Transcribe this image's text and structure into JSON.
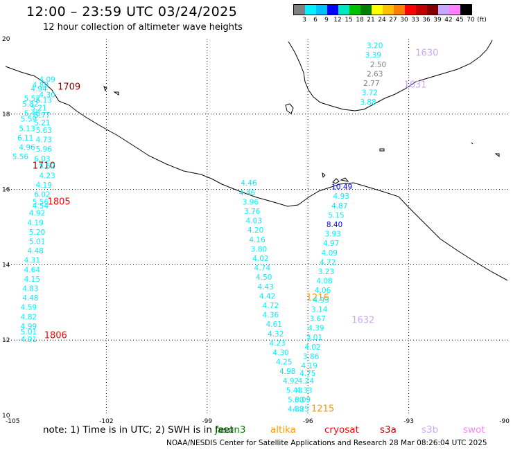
{
  "header": {
    "title": "12:00 – 23:59 UTC 03/24/2025",
    "subtitle": "12 hour collection of altimeter wave heights"
  },
  "legend": {
    "colors": [
      "#7f7f7f",
      "#00f0ff",
      "#00bfff",
      "#0000ff",
      "#00e8c0",
      "#00c000",
      "#008000",
      "#ffff00",
      "#ffc000",
      "#ff8000",
      "#ff0000",
      "#c00000",
      "#800000",
      "#c8a8ff",
      "#ff80ff",
      "#000000"
    ],
    "labels": [
      "3",
      "6",
      "9",
      "12",
      "15",
      "18",
      "21",
      "24",
      "27",
      "30",
      "33",
      "36",
      "39",
      "42",
      "45",
      "70",
      "(ft)"
    ]
  },
  "axes": {
    "lon_labels": [
      "-105",
      "-102",
      "-99",
      "-96",
      "-93",
      "-90"
    ],
    "lat_labels": [
      "20",
      "18",
      "16",
      "14",
      "12",
      "10"
    ]
  },
  "chart_data": {
    "type": "scatter",
    "xlim": [
      -105,
      -90
    ],
    "ylim": [
      10,
      20
    ],
    "track_labels": [
      {
        "text": "1709",
        "lon": -103.45,
        "lat": 18.65,
        "color": "#800000"
      },
      {
        "text": "1710",
        "lon": -104.2,
        "lat": 16.55,
        "color": "#800000"
      },
      {
        "text": "1805",
        "lon": -103.75,
        "lat": 15.6,
        "color": "#ff0000"
      },
      {
        "text": "1806",
        "lon": -103.85,
        "lat": 12.05,
        "color": "#ff0000"
      },
      {
        "text": "1630",
        "lon": -92.8,
        "lat": 19.55,
        "color": "#c8a8ff"
      },
      {
        "text": "1631",
        "lon": -93.15,
        "lat": 18.7,
        "color": "#c8a8ff"
      },
      {
        "text": "1632",
        "lon": -94.7,
        "lat": 12.45,
        "color": "#c8a8ff"
      },
      {
        "text": "1216",
        "lon": -96.05,
        "lat": 13.05,
        "color": "#ff9900"
      },
      {
        "text": "1215",
        "lon": -95.9,
        "lat": 10.1,
        "color": "#ff9900"
      }
    ],
    "points": [
      {
        "lon": -104.0,
        "lat": 18.85,
        "v": "4.09",
        "c": "#00f0ff"
      },
      {
        "lon": -104.2,
        "lat": 18.7,
        "v": "4.89",
        "c": "#00f0ff"
      },
      {
        "lon": -104.25,
        "lat": 18.6,
        "v": "4.94",
        "c": "#00f0ff"
      },
      {
        "lon": -104.0,
        "lat": 18.45,
        "v": "4.30",
        "c": "#00f0ff"
      },
      {
        "lon": -104.45,
        "lat": 18.35,
        "v": "5.52",
        "c": "#00f0ff"
      },
      {
        "lon": -104.1,
        "lat": 18.3,
        "v": "5.13",
        "c": "#00f0ff"
      },
      {
        "lon": -104.5,
        "lat": 18.2,
        "v": "5.82",
        "c": "#00f0ff"
      },
      {
        "lon": -104.25,
        "lat": 18.1,
        "v": "5.21",
        "c": "#00f0ff"
      },
      {
        "lon": -104.45,
        "lat": 17.95,
        "v": "5.48",
        "c": "#00f0ff"
      },
      {
        "lon": -104.15,
        "lat": 17.9,
        "v": "5.77",
        "c": "#00f0ff"
      },
      {
        "lon": -104.55,
        "lat": 17.8,
        "v": "5.59",
        "c": "#00f0ff"
      },
      {
        "lon": -104.15,
        "lat": 17.7,
        "v": "5.21",
        "c": "#00f0ff"
      },
      {
        "lon": -104.6,
        "lat": 17.55,
        "v": "5.13",
        "c": "#00f0ff"
      },
      {
        "lon": -104.1,
        "lat": 17.5,
        "v": "5.63",
        "c": "#00f0ff"
      },
      {
        "lon": -104.65,
        "lat": 17.3,
        "v": "6.11",
        "c": "#00f0ff"
      },
      {
        "lon": -104.1,
        "lat": 17.25,
        "v": "4.73",
        "c": "#00f0ff"
      },
      {
        "lon": -104.6,
        "lat": 17.05,
        "v": "4.96",
        "c": "#00f0ff"
      },
      {
        "lon": -104.1,
        "lat": 17.0,
        "v": "5.96",
        "c": "#00f0ff"
      },
      {
        "lon": -104.8,
        "lat": 16.8,
        "v": "5.56",
        "c": "#00f0ff"
      },
      {
        "lon": -104.15,
        "lat": 16.75,
        "v": "6.03",
        "c": "#00f0ff"
      },
      {
        "lon": -104.0,
        "lat": 16.55,
        "v": "5.52",
        "c": "#00f0ff"
      },
      {
        "lon": -104.0,
        "lat": 16.3,
        "v": "4.23",
        "c": "#00f0ff"
      },
      {
        "lon": -104.1,
        "lat": 16.05,
        "v": "4.19",
        "c": "#00f0ff"
      },
      {
        "lon": -104.15,
        "lat": 15.8,
        "v": "6.02",
        "c": "#00f0ff"
      },
      {
        "lon": -104.2,
        "lat": 15.6,
        "v": "5.56",
        "c": "#00f0ff"
      },
      {
        "lon": -104.2,
        "lat": 15.5,
        "v": "4.54",
        "c": "#00f0ff"
      },
      {
        "lon": -104.3,
        "lat": 15.3,
        "v": "4.92",
        "c": "#00f0ff"
      },
      {
        "lon": -104.35,
        "lat": 15.05,
        "v": "4.19",
        "c": "#00f0ff"
      },
      {
        "lon": -104.3,
        "lat": 14.8,
        "v": "5.20",
        "c": "#00f0ff"
      },
      {
        "lon": -104.3,
        "lat": 14.55,
        "v": "5.01",
        "c": "#00f0ff"
      },
      {
        "lon": -104.35,
        "lat": 14.3,
        "v": "4.48",
        "c": "#00f0ff"
      },
      {
        "lon": -104.45,
        "lat": 14.05,
        "v": "4.31",
        "c": "#00f0ff"
      },
      {
        "lon": -104.45,
        "lat": 13.8,
        "v": "4.64",
        "c": "#00f0ff"
      },
      {
        "lon": -104.45,
        "lat": 13.55,
        "v": "4.15",
        "c": "#00f0ff"
      },
      {
        "lon": -104.5,
        "lat": 13.3,
        "v": "4.83",
        "c": "#00f0ff"
      },
      {
        "lon": -104.5,
        "lat": 13.05,
        "v": "4.48",
        "c": "#00f0ff"
      },
      {
        "lon": -104.55,
        "lat": 12.8,
        "v": "4.59",
        "c": "#00f0ff"
      },
      {
        "lon": -104.55,
        "lat": 12.55,
        "v": "4.82",
        "c": "#00f0ff"
      },
      {
        "lon": -104.55,
        "lat": 12.3,
        "v": "4.99",
        "c": "#00f0ff"
      },
      {
        "lon": -104.55,
        "lat": 12.15,
        "v": "5.01",
        "c": "#00f0ff"
      },
      {
        "lon": -104.55,
        "lat": 11.95,
        "v": "4.91",
        "c": "#00f0ff"
      },
      {
        "lon": -94.25,
        "lat": 19.75,
        "v": "3.20",
        "c": "#00f0ff"
      },
      {
        "lon": -94.3,
        "lat": 19.5,
        "v": "3.39",
        "c": "#00f0ff"
      },
      {
        "lon": -94.15,
        "lat": 19.25,
        "v": "2.50",
        "c": "#7f7f7f"
      },
      {
        "lon": -94.25,
        "lat": 19.0,
        "v": "2.63",
        "c": "#7f7f7f"
      },
      {
        "lon": -94.35,
        "lat": 18.75,
        "v": "2.77",
        "c": "#7f7f7f"
      },
      {
        "lon": -94.4,
        "lat": 18.5,
        "v": "3.72",
        "c": "#00f0ff"
      },
      {
        "lon": -94.45,
        "lat": 18.25,
        "v": "3.88",
        "c": "#00f0ff"
      },
      {
        "lon": -98.0,
        "lat": 16.1,
        "v": "4.46",
        "c": "#00f0ff"
      },
      {
        "lon": -98.05,
        "lat": 15.85,
        "v": "4.46",
        "c": "#00f0ff"
      },
      {
        "lon": -97.95,
        "lat": 15.6,
        "v": "3.96",
        "c": "#00f0ff"
      },
      {
        "lon": -97.9,
        "lat": 15.35,
        "v": "3.76",
        "c": "#00f0ff"
      },
      {
        "lon": -97.85,
        "lat": 15.1,
        "v": "4.03",
        "c": "#00f0ff"
      },
      {
        "lon": -97.8,
        "lat": 14.85,
        "v": "4.20",
        "c": "#00f0ff"
      },
      {
        "lon": -97.75,
        "lat": 14.6,
        "v": "4.16",
        "c": "#00f0ff"
      },
      {
        "lon": -97.7,
        "lat": 14.35,
        "v": "3.80",
        "c": "#00f0ff"
      },
      {
        "lon": -97.65,
        "lat": 14.1,
        "v": "4.02",
        "c": "#00f0ff"
      },
      {
        "lon": -97.6,
        "lat": 13.85,
        "v": "4.74",
        "c": "#00f0ff"
      },
      {
        "lon": -97.55,
        "lat": 13.6,
        "v": "4.50",
        "c": "#00f0ff"
      },
      {
        "lon": -97.5,
        "lat": 13.35,
        "v": "4.43",
        "c": "#00f0ff"
      },
      {
        "lon": -97.45,
        "lat": 13.1,
        "v": "4.42",
        "c": "#00f0ff"
      },
      {
        "lon": -97.35,
        "lat": 12.85,
        "v": "4.72",
        "c": "#00f0ff"
      },
      {
        "lon": -97.35,
        "lat": 12.6,
        "v": "4.36",
        "c": "#00f0ff"
      },
      {
        "lon": -97.25,
        "lat": 12.35,
        "v": "4.61",
        "c": "#00f0ff"
      },
      {
        "lon": -97.2,
        "lat": 12.1,
        "v": "4.32",
        "c": "#00f0ff"
      },
      {
        "lon": -97.15,
        "lat": 11.85,
        "v": "4.23",
        "c": "#00f0ff"
      },
      {
        "lon": -97.05,
        "lat": 11.6,
        "v": "4.30",
        "c": "#00f0ff"
      },
      {
        "lon": -96.95,
        "lat": 11.35,
        "v": "4.25",
        "c": "#00f0ff"
      },
      {
        "lon": -96.85,
        "lat": 11.1,
        "v": "4.98",
        "c": "#00f0ff"
      },
      {
        "lon": -96.75,
        "lat": 10.85,
        "v": "4.92",
        "c": "#00f0ff"
      },
      {
        "lon": -96.65,
        "lat": 10.6,
        "v": "5.43",
        "c": "#00f0ff"
      },
      {
        "lon": -96.6,
        "lat": 10.35,
        "v": "5.30",
        "c": "#00f0ff"
      },
      {
        "lon": -96.6,
        "lat": 10.1,
        "v": "4.38",
        "c": "#00f0ff"
      },
      {
        "lon": -95.3,
        "lat": 16.0,
        "v": "10.49",
        "c": "#0000ff"
      },
      {
        "lon": -95.25,
        "lat": 15.75,
        "v": "4.93",
        "c": "#00f0ff"
      },
      {
        "lon": -95.3,
        "lat": 15.5,
        "v": "4.87",
        "c": "#00f0ff"
      },
      {
        "lon": -95.4,
        "lat": 15.25,
        "v": "5.15",
        "c": "#00f0ff"
      },
      {
        "lon": -95.45,
        "lat": 15.0,
        "v": "8.40",
        "c": "#0000ff"
      },
      {
        "lon": -95.5,
        "lat": 14.75,
        "v": "3.93",
        "c": "#00f0ff"
      },
      {
        "lon": -95.55,
        "lat": 14.5,
        "v": "4.97",
        "c": "#00f0ff"
      },
      {
        "lon": -95.6,
        "lat": 14.25,
        "v": "4.09",
        "c": "#00f0ff"
      },
      {
        "lon": -95.65,
        "lat": 14.0,
        "v": "4.72",
        "c": "#00f0ff"
      },
      {
        "lon": -95.7,
        "lat": 13.75,
        "v": "3.23",
        "c": "#00f0ff"
      },
      {
        "lon": -95.75,
        "lat": 13.5,
        "v": "4.08",
        "c": "#00f0ff"
      },
      {
        "lon": -95.8,
        "lat": 13.25,
        "v": "4.06",
        "c": "#00f0ff"
      },
      {
        "lon": -95.85,
        "lat": 13.0,
        "v": "4.93",
        "c": "#00f0ff"
      },
      {
        "lon": -95.9,
        "lat": 12.75,
        "v": "3.14",
        "c": "#00f0ff"
      },
      {
        "lon": -95.95,
        "lat": 12.5,
        "v": "3.67",
        "c": "#00f0ff"
      },
      {
        "lon": -96.0,
        "lat": 12.25,
        "v": "4.39",
        "c": "#00f0ff"
      },
      {
        "lon": -96.05,
        "lat": 12.0,
        "v": "3.01",
        "c": "#00f0ff"
      },
      {
        "lon": -96.1,
        "lat": 11.75,
        "v": "4.02",
        "c": "#00f0ff"
      },
      {
        "lon": -96.15,
        "lat": 11.5,
        "v": "3.86",
        "c": "#00f0ff"
      },
      {
        "lon": -96.2,
        "lat": 11.25,
        "v": "4.19",
        "c": "#00f0ff"
      },
      {
        "lon": -96.25,
        "lat": 11.05,
        "v": "4.75",
        "c": "#00f0ff"
      },
      {
        "lon": -96.3,
        "lat": 10.85,
        "v": "4.24",
        "c": "#00f0ff"
      },
      {
        "lon": -96.35,
        "lat": 10.6,
        "v": "4.33",
        "c": "#00f0ff"
      },
      {
        "lon": -96.4,
        "lat": 10.35,
        "v": "6.09",
        "c": "#00f0ff"
      },
      {
        "lon": -96.45,
        "lat": 10.1,
        "v": "4.25",
        "c": "#00f0ff"
      }
    ]
  },
  "footer": {
    "note": "note:  1) Time is in UTC; 2) SWH is in feet",
    "credit": "NOAA/NESDIS Center for Satellite Applications and Research    28 Mar 08:26:04 UTC 2025",
    "satellites": [
      {
        "name": "jason3",
        "color": "#008000"
      },
      {
        "name": "altika",
        "color": "#ff9900"
      },
      {
        "name": "cryosat",
        "color": "#ff0000"
      },
      {
        "name": "s3a",
        "color": "#c00000"
      },
      {
        "name": "s3b",
        "color": "#c8a8ff"
      },
      {
        "name": "swot",
        "color": "#ff80ff"
      }
    ]
  }
}
